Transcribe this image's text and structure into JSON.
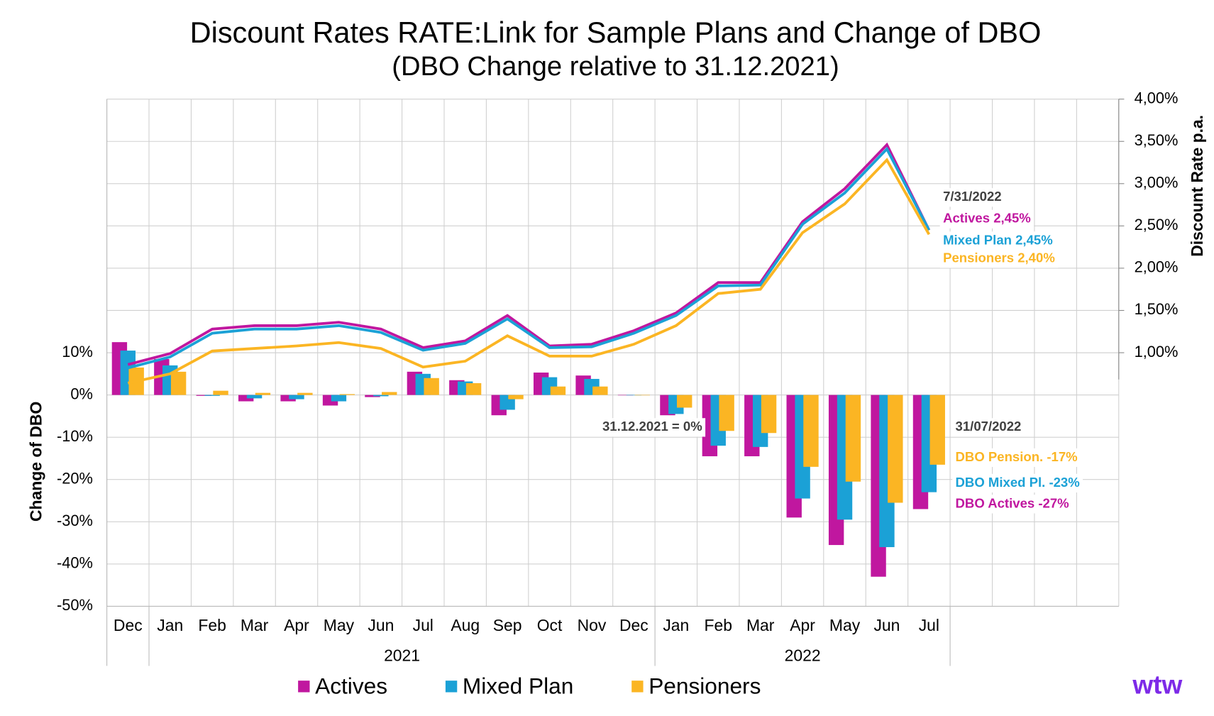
{
  "chart_data": {
    "type": "bar-line",
    "title": "Discount Rates RATE:Link for Sample Plans and Change of DBO",
    "subtitle": "(DBO Change relative to 31.12.2021)",
    "y_label": "Change of DBO",
    "y2_label": "Discount Rate p.a.",
    "categories": [
      "Dec",
      "Jan",
      "Feb",
      "Mar",
      "Apr",
      "May",
      "Jun",
      "Jul",
      "Aug",
      "Sep",
      "Oct",
      "Nov",
      "Dec",
      "Jan",
      "Feb",
      "Mar",
      "Apr",
      "May",
      "Jun",
      "Jul",
      null,
      null,
      null,
      null
    ],
    "groups": [
      {
        "label": "2021",
        "from": 1,
        "to": 12
      },
      {
        "label": "2022",
        "from": 13,
        "to": 19
      }
    ],
    "series": [
      {
        "name": "Actives",
        "color": "#c0179f",
        "values": [
          12.5,
          8.5,
          -0.2,
          -1.5,
          -1.5,
          -2.5,
          -0.5,
          5.5,
          3.5,
          -4.8,
          5.3,
          4.6,
          0,
          -4.8,
          -14.5,
          -14.5,
          -29,
          -35.5,
          -43,
          -27,
          null,
          null,
          null,
          null
        ],
        "rates": [
          0.86,
          0.99,
          1.28,
          1.32,
          1.32,
          1.36,
          1.28,
          1.06,
          1.14,
          1.44,
          1.08,
          1.1,
          1.26,
          1.47,
          1.83,
          1.83,
          2.55,
          2.94,
          3.46,
          2.45,
          null,
          null,
          null,
          null
        ]
      },
      {
        "name": "Mixed Plan",
        "color": "#1ba1d6",
        "values": [
          10.5,
          7,
          -0.2,
          -0.8,
          -1,
          -1.5,
          -0.3,
          5,
          3.2,
          -3.5,
          4.2,
          3.8,
          0,
          -4.5,
          -12,
          -12.3,
          -24.5,
          -29.5,
          -36,
          -23,
          null,
          null,
          null,
          null
        ],
        "rates": [
          0.82,
          0.95,
          1.23,
          1.28,
          1.28,
          1.32,
          1.24,
          1.03,
          1.11,
          1.4,
          1.06,
          1.07,
          1.23,
          1.44,
          1.79,
          1.8,
          2.52,
          2.89,
          3.41,
          2.45,
          null,
          null,
          null,
          null
        ]
      },
      {
        "name": "Pensioners",
        "color": "#fbb523",
        "values": [
          6.5,
          5.5,
          1,
          0.5,
          0.5,
          0.2,
          0.7,
          4,
          2.8,
          -1,
          2,
          2,
          0,
          -3,
          -8.5,
          -9,
          -17,
          -20.5,
          -25.5,
          -16.5,
          null,
          null,
          null,
          null
        ],
        "rates": [
          0.64,
          0.75,
          1.02,
          1.05,
          1.08,
          1.12,
          1.05,
          0.83,
          0.9,
          1.2,
          0.96,
          0.96,
          1.1,
          1.32,
          1.7,
          1.75,
          2.42,
          2.76,
          3.28,
          2.4,
          null,
          null,
          null,
          null
        ]
      }
    ],
    "ylim": [
      -50,
      70
    ],
    "yticks": [
      {
        "value": -50,
        "label": "-50%"
      },
      {
        "value": -40,
        "label": "-40%"
      },
      {
        "value": -30,
        "label": "-30%"
      },
      {
        "value": -20,
        "label": "-20%"
      },
      {
        "value": -10,
        "label": "-10%"
      },
      {
        "value": 0,
        "label": "0%"
      },
      {
        "value": 10,
        "label": "10%"
      }
    ],
    "y2lim": [
      -2,
      4
    ],
    "y2ticks": [
      {
        "value": 1,
        "label": "1,00%"
      },
      {
        "value": 1.5,
        "label": "1,50%"
      },
      {
        "value": 2,
        "label": "2,00%"
      },
      {
        "value": 2.5,
        "label": "2,50%"
      },
      {
        "value": 3,
        "label": "3,00%"
      },
      {
        "value": 3.5,
        "label": "3,50%"
      },
      {
        "value": 4,
        "label": "4,00%"
      }
    ],
    "grid": true,
    "annotations": [
      {
        "text": "7/31/2022",
        "color": "#404040"
      },
      {
        "text": "Actives 2,45%",
        "color": "#c0179f"
      },
      {
        "text": "Mixed Plan 2,45%",
        "color": "#1ba1d6"
      },
      {
        "text": "Pensioners 2,40%",
        "color": "#fbb523"
      },
      {
        "text": "31/07/2022",
        "color": "#404040"
      },
      {
        "text": "DBO Pension. -17%",
        "color": "#fbb523"
      },
      {
        "text": "DBO Mixed Pl. -23%",
        "color": "#1ba1d6"
      },
      {
        "text": "DBO Actives -27%",
        "color": "#c0179f"
      },
      {
        "text": "31.12.2021 = 0%",
        "color": "#404040"
      }
    ],
    "logo": "wtw"
  }
}
